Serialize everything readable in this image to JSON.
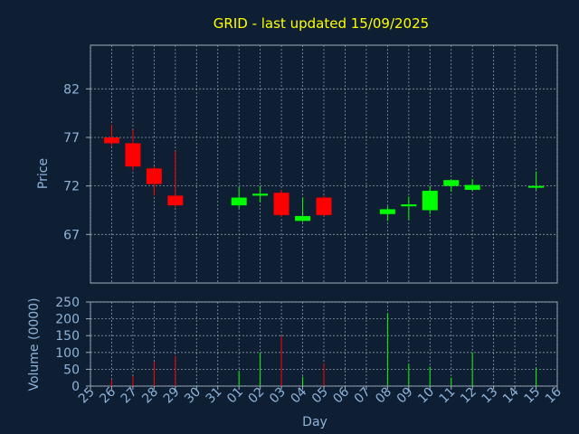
{
  "chart_data": {
    "type": "candlestick",
    "title": "GRID - last updated 15/09/2025",
    "xlabel": "Day",
    "x_ticks": [
      "25",
      "26",
      "27",
      "28",
      "29",
      "30",
      "31",
      "01",
      "02",
      "03",
      "04",
      "05",
      "06",
      "07",
      "08",
      "09",
      "10",
      "11",
      "12",
      "13",
      "14",
      "15",
      "16"
    ],
    "price_panel": {
      "ylabel": "Price",
      "ylim": [
        62,
        86.5
      ],
      "y_ticks": [
        67,
        72,
        77,
        82
      ],
      "candles": [
        {
          "day": "26",
          "open": 77.0,
          "close": 76.4,
          "high": 78.3,
          "low": 76.1
        },
        {
          "day": "27",
          "open": 76.4,
          "close": 74.0,
          "high": 77.8,
          "low": 73.6
        },
        {
          "day": "28",
          "open": 73.8,
          "close": 72.2,
          "high": 74.0,
          "low": 71.0
        },
        {
          "day": "29",
          "open": 71.0,
          "close": 70.0,
          "high": 75.6,
          "low": 69.8
        },
        {
          "day": "01",
          "open": 70.0,
          "close": 70.8,
          "high": 71.9,
          "low": 69.7
        },
        {
          "day": "02",
          "open": 71.0,
          "close": 71.2,
          "high": 72.0,
          "low": 70.3
        },
        {
          "day": "03",
          "open": 71.3,
          "close": 69.0,
          "high": 71.6,
          "low": 68.8
        },
        {
          "day": "04",
          "open": 68.4,
          "close": 68.9,
          "high": 70.8,
          "low": 68.3
        },
        {
          "day": "05",
          "open": 70.8,
          "close": 69.0,
          "high": 71.0,
          "low": 68.9
        },
        {
          "day": "08",
          "open": 69.1,
          "close": 69.6,
          "high": 69.9,
          "low": 68.4
        },
        {
          "day": "09",
          "open": 69.9,
          "close": 70.1,
          "high": 70.9,
          "low": 68.5
        },
        {
          "day": "10",
          "open": 69.5,
          "close": 71.5,
          "high": 72.0,
          "low": 69.1
        },
        {
          "day": "11",
          "open": 72.0,
          "close": 72.6,
          "high": 72.7,
          "low": 71.4
        },
        {
          "day": "12",
          "open": 71.6,
          "close": 72.1,
          "high": 72.7,
          "low": 71.5
        },
        {
          "day": "15",
          "open": 72.0,
          "close": 72.0,
          "high": 73.5,
          "low": 71.6
        }
      ]
    },
    "volume_panel": {
      "ylabel": "Volume (0000)",
      "ylim": [
        0,
        250
      ],
      "y_ticks": [
        0,
        50,
        100,
        150,
        200,
        250
      ],
      "bars": [
        {
          "day": "26",
          "value": 20
        },
        {
          "day": "27",
          "value": 30
        },
        {
          "day": "28",
          "value": 72
        },
        {
          "day": "29",
          "value": 90
        },
        {
          "day": "01",
          "value": 45
        },
        {
          "day": "02",
          "value": 100
        },
        {
          "day": "03",
          "value": 148
        },
        {
          "day": "04",
          "value": 28
        },
        {
          "day": "05",
          "value": 68
        },
        {
          "day": "08",
          "value": 215
        },
        {
          "day": "09",
          "value": 65
        },
        {
          "day": "10",
          "value": 58
        },
        {
          "day": "11",
          "value": 25
        },
        {
          "day": "12",
          "value": 100
        },
        {
          "day": "15",
          "value": 55
        }
      ]
    },
    "colors": {
      "background": "#0f1f33",
      "up": "#00ff00",
      "down": "#ff0000",
      "title": "#ffff00",
      "axis_text": "#8fb3d9",
      "grid": "#8a9aad",
      "frame": "#a0b0c0"
    },
    "grid": true
  }
}
